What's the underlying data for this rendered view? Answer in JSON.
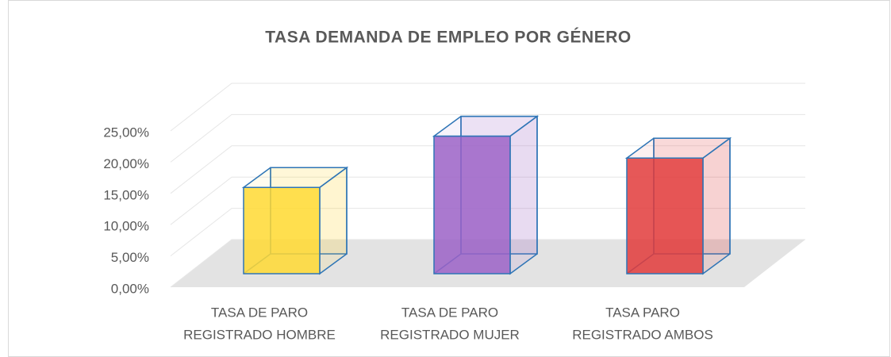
{
  "chart_data": {
    "type": "bar3d",
    "title": "TASA DEMANDA DE EMPLEO POR GÉNERO",
    "categories": [
      [
        "TASA  DE PARO",
        "REGISTRADO HOMBRE"
      ],
      [
        "TASA DE PARO",
        "REGISTRADO MUJER"
      ],
      [
        "TASA PARO",
        "REGISTRADO AMBOS"
      ]
    ],
    "values": [
      13.8,
      22.0,
      18.5
    ],
    "colors": [
      "#ffd932",
      "#9b62c7",
      "#e23b3b"
    ],
    "ylim": [
      0,
      25
    ],
    "yticks": [
      {
        "value": 0,
        "label": "0,00%"
      },
      {
        "value": 5,
        "label": "5,00%"
      },
      {
        "value": 10,
        "label": "10,00%"
      },
      {
        "value": 15,
        "label": "15,00%"
      },
      {
        "value": 20,
        "label": "20,00%"
      },
      {
        "value": 25,
        "label": "25,00%"
      }
    ],
    "grid": true
  }
}
